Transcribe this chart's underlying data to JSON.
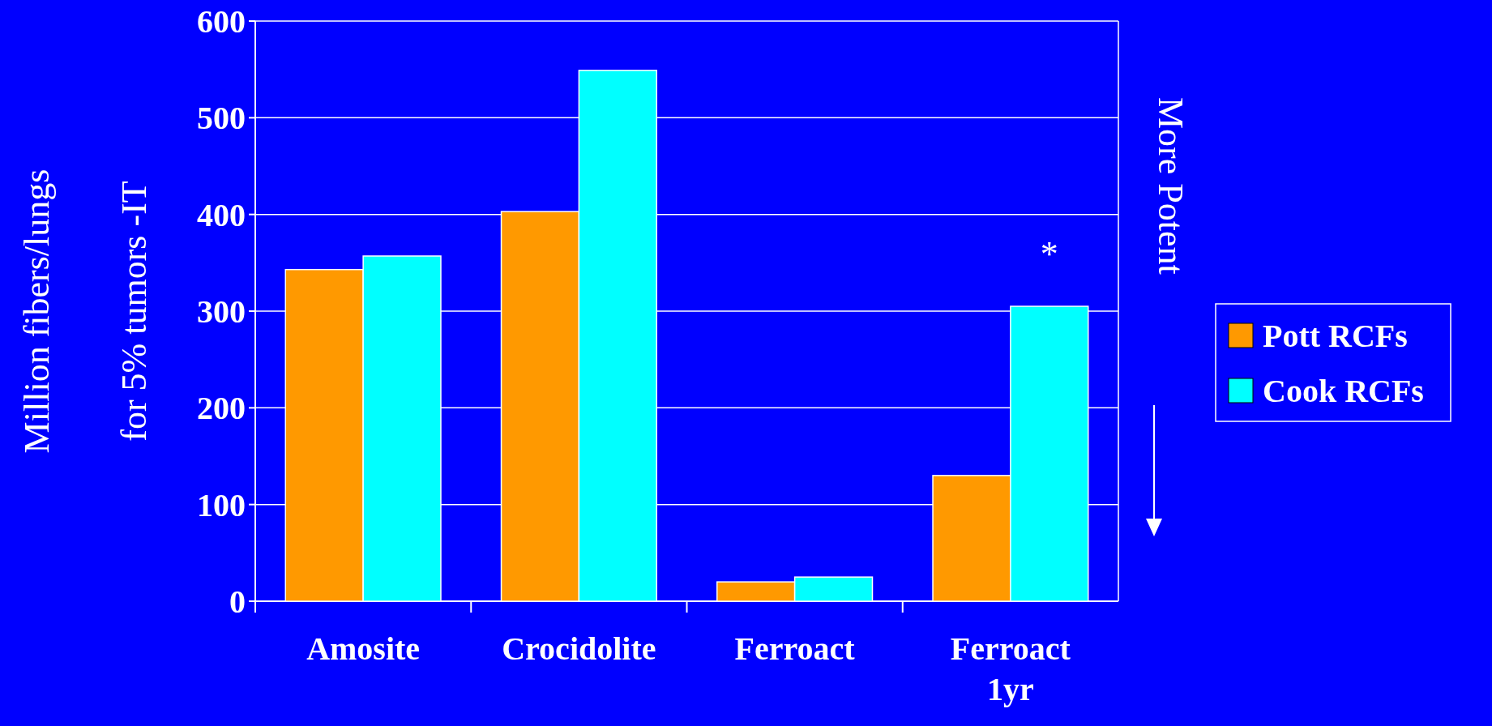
{
  "chart_data": {
    "type": "bar",
    "ylabel": "Million fibers/lungs\nfor 5% tumors -IT",
    "categories": [
      "Amosite",
      "Crocidolite",
      "Ferroact",
      "Ferroact 1yr"
    ],
    "series": [
      {
        "name": "Pott RCFs",
        "color": "#ff9900",
        "values": [
          343,
          403,
          20,
          130
        ]
      },
      {
        "name": "Cook RCFs",
        "color": "#00ffff",
        "values": [
          357,
          549,
          25,
          305
        ]
      }
    ],
    "ylim": [
      0,
      600
    ],
    "yticks": [
      0,
      100,
      200,
      300,
      400,
      500,
      600
    ],
    "grid": "y",
    "legend": "right",
    "annotations": [
      "*",
      "More Potent"
    ]
  }
}
